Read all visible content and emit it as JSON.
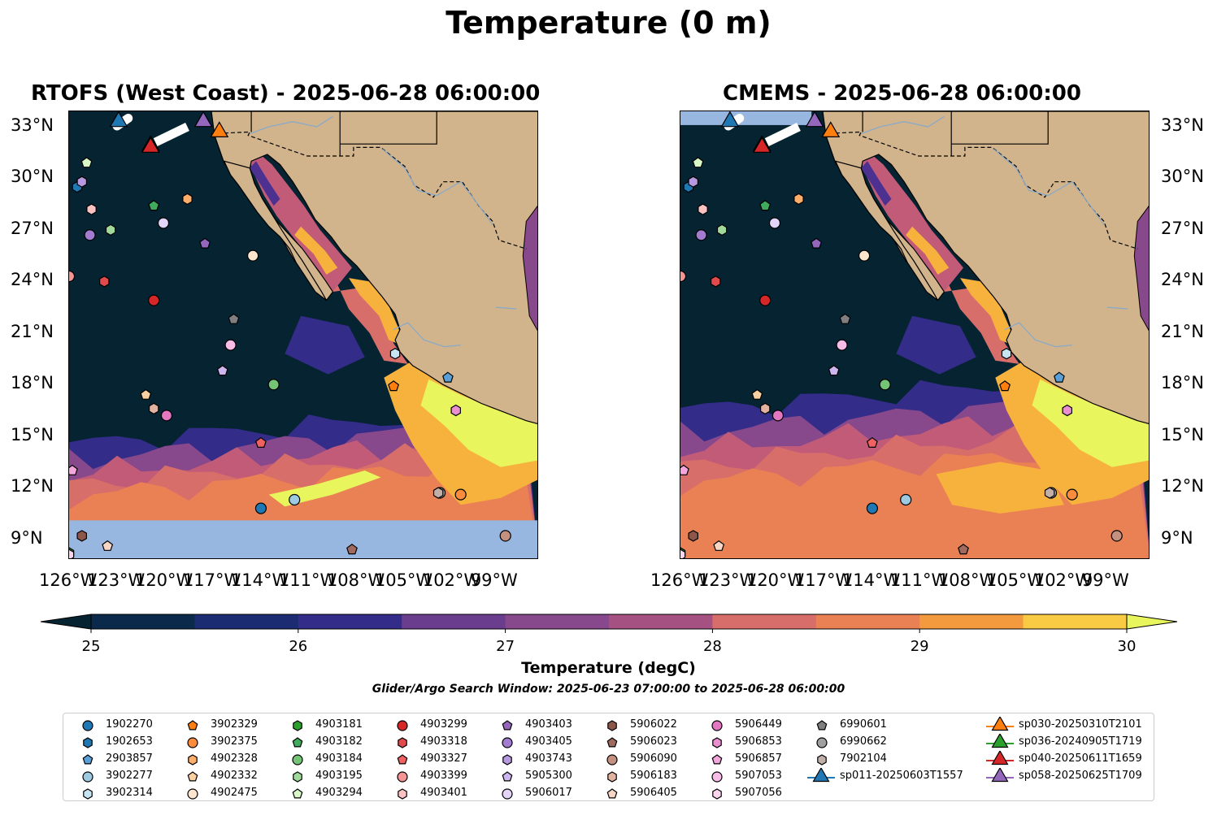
{
  "figure": {
    "title": "Temperature (0 m)",
    "left_panel_title": "RTOFS (West Coast) - 2025-06-28 06:00:00",
    "right_panel_title": "CMEMS - 2025-06-28 06:00:00",
    "lat_ticks": [
      "33°N",
      "30°N",
      "27°N",
      "24°N",
      "21°N",
      "18°N",
      "15°N",
      "12°N",
      "9°N"
    ],
    "lon_ticks": [
      "126°W",
      "123°W",
      "120°W",
      "117°W",
      "114°W",
      "111°W",
      "108°W",
      "105°W",
      "102°W",
      "99°W"
    ],
    "colorbar": {
      "label": "Temperature (degC)",
      "ticks": [
        "25",
        "26",
        "27",
        "28",
        "29",
        "30"
      ],
      "min": 24.9,
      "max": 30,
      "colors": [
        "#062332",
        "#0b2a4b",
        "#1c2c73",
        "#332c89",
        "#4d3190",
        "#6a3d8f",
        "#87498b",
        "#a55282",
        "#c15b78",
        "#d86e6a",
        "#ea8154",
        "#f39a3e",
        "#f7b23e",
        "#f9cb45",
        "#e8f55c"
      ]
    },
    "search_window": "Glider/Argo Search Window: 2025-06-23 07:00:00 to 2025-06-28 06:00:00",
    "colors": {
      "land": "#d2b48c",
      "nodata": "#97b6e0",
      "rivers": "#8aa9c8"
    }
  },
  "legend": {
    "items": [
      {
        "label": "1902270",
        "marker": "circle",
        "color": "#1f77b4"
      },
      {
        "label": "1902653",
        "marker": "hexagon",
        "color": "#1f77b4"
      },
      {
        "label": "2903857",
        "marker": "pentagon",
        "color": "#5aa0d6"
      },
      {
        "label": "3902277",
        "marker": "circle",
        "color": "#9ecae1"
      },
      {
        "label": "3902314",
        "marker": "hexagon",
        "color": "#c6e4f2"
      },
      {
        "label": "3902329",
        "marker": "pentagon",
        "color": "#ff7f0e"
      },
      {
        "label": "3902375",
        "marker": "circle",
        "color": "#fd8d3c"
      },
      {
        "label": "4902328",
        "marker": "hexagon",
        "color": "#fdae6b"
      },
      {
        "label": "4902332",
        "marker": "pentagon",
        "color": "#fdd0a2"
      },
      {
        "label": "4902475",
        "marker": "circle",
        "color": "#fee6ce"
      },
      {
        "label": "4903181",
        "marker": "hexagon",
        "color": "#2ca02c"
      },
      {
        "label": "4903182",
        "marker": "pentagon",
        "color": "#41ab5d"
      },
      {
        "label": "4903184",
        "marker": "circle",
        "color": "#74c476"
      },
      {
        "label": "4903195",
        "marker": "hexagon",
        "color": "#a1d99b"
      },
      {
        "label": "4903294",
        "marker": "pentagon",
        "color": "#d9f7c7"
      },
      {
        "label": "4903299",
        "marker": "circle",
        "color": "#d62728"
      },
      {
        "label": "4903318",
        "marker": "hexagon",
        "color": "#e04a4b"
      },
      {
        "label": "4903327",
        "marker": "pentagon",
        "color": "#f06262"
      },
      {
        "label": "4903399",
        "marker": "circle",
        "color": "#f49494"
      },
      {
        "label": "4903401",
        "marker": "hexagon",
        "color": "#fbc2c2"
      },
      {
        "label": "4903403",
        "marker": "pentagon",
        "color": "#9467bd"
      },
      {
        "label": "4903405",
        "marker": "circle",
        "color": "#a27cd0"
      },
      {
        "label": "4903743",
        "marker": "hexagon",
        "color": "#b799e0"
      },
      {
        "label": "5905300",
        "marker": "pentagon",
        "color": "#cdb5f0"
      },
      {
        "label": "5906017",
        "marker": "circle",
        "color": "#e3d5f7"
      },
      {
        "label": "5906022",
        "marker": "hexagon",
        "color": "#8c564b"
      },
      {
        "label": "5906023",
        "marker": "pentagon",
        "color": "#a06a5e"
      },
      {
        "label": "5906090",
        "marker": "circle",
        "color": "#c4907f"
      },
      {
        "label": "5906183",
        "marker": "hexagon",
        "color": "#e3b3a1"
      },
      {
        "label": "5906405",
        "marker": "pentagon",
        "color": "#f7d6c6"
      },
      {
        "label": "5906449",
        "marker": "circle",
        "color": "#e377c2"
      },
      {
        "label": "5906853",
        "marker": "hexagon",
        "color": "#ea8fcf"
      },
      {
        "label": "5906857",
        "marker": "pentagon",
        "color": "#f4a6dc"
      },
      {
        "label": "5907053",
        "marker": "circle",
        "color": "#f8bde6"
      },
      {
        "label": "5907056",
        "marker": "hexagon",
        "color": "#fbd5f0"
      },
      {
        "label": "6990601",
        "marker": "pentagon",
        "color": "#7f7f7f"
      },
      {
        "label": "6990662",
        "marker": "circle",
        "color": "#a0a0a0"
      },
      {
        "label": "7902104",
        "marker": "hexagon",
        "color": "#c2b0a8"
      },
      {
        "label": "sp011-20250603T1557",
        "marker": "triangle",
        "color": "#1f77b4"
      },
      {
        "label": "sp030-20250310T2101",
        "marker": "triangle",
        "color": "#ff7f0e"
      },
      {
        "label": "sp036-20240905T1719",
        "marker": "triangle",
        "color": "#2ca02c"
      },
      {
        "label": "sp040-20250611T1659",
        "marker": "triangle",
        "color": "#d62728"
      },
      {
        "label": "sp058-20250625T1709",
        "marker": "triangle",
        "color": "#9467bd"
      }
    ]
  },
  "argo_floats": [
    {
      "id": "1902270",
      "lon": -114.0,
      "lat": 10.8
    },
    {
      "id": "1902653",
      "lon": -125.5,
      "lat": 29.5
    },
    {
      "id": "2903857",
      "lon": -102.3,
      "lat": 18.4
    },
    {
      "id": "3902277",
      "lon": -111.9,
      "lat": 11.3
    },
    {
      "id": "3902314",
      "lon": -105.6,
      "lat": 19.8
    },
    {
      "id": "3902329",
      "lon": -105.7,
      "lat": 17.9
    },
    {
      "id": "3902375",
      "lon": -101.5,
      "lat": 11.6
    },
    {
      "id": "4902328",
      "lon": -118.6,
      "lat": 28.8
    },
    {
      "id": "4902332",
      "lon": -121.2,
      "lat": 17.4
    },
    {
      "id": "4902475",
      "lon": -114.5,
      "lat": 25.5
    },
    {
      "id": "4903181",
      "lon": -126.0,
      "lat": 8.2
    },
    {
      "id": "4903182",
      "lon": -120.7,
      "lat": 28.4
    },
    {
      "id": "4903184",
      "lon": -113.2,
      "lat": 18.0
    },
    {
      "id": "4903195",
      "lon": -123.4,
      "lat": 27.0
    },
    {
      "id": "4903294",
      "lon": -124.9,
      "lat": 30.9
    },
    {
      "id": "4903299",
      "lon": -120.7,
      "lat": 22.9
    },
    {
      "id": "4903318",
      "lon": -123.8,
      "lat": 24.0
    },
    {
      "id": "4903327",
      "lon": -114.0,
      "lat": 14.6
    },
    {
      "id": "4903399",
      "lon": -126.0,
      "lat": 24.3
    },
    {
      "id": "4903401",
      "lon": -124.6,
      "lat": 28.2
    },
    {
      "id": "4903403",
      "lon": -117.5,
      "lat": 26.2
    },
    {
      "id": "4903405",
      "lon": -124.7,
      "lat": 26.7
    },
    {
      "id": "4903743",
      "lon": -125.2,
      "lat": 29.8
    },
    {
      "id": "5905300",
      "lon": -116.4,
      "lat": 18.8
    },
    {
      "id": "5906017",
      "lon": -120.1,
      "lat": 27.4
    },
    {
      "id": "5906022",
      "lon": -125.2,
      "lat": 9.2
    },
    {
      "id": "5906023",
      "lon": -108.3,
      "lat": 8.4
    },
    {
      "id": "5906090",
      "lon": -98.7,
      "lat": 9.2
    },
    {
      "id": "5906183",
      "lon": -120.7,
      "lat": 16.6
    },
    {
      "id": "5906405",
      "lon": -123.6,
      "lat": 8.6
    },
    {
      "id": "5906449",
      "lon": -119.9,
      "lat": 16.2
    },
    {
      "id": "5906853",
      "lon": -101.8,
      "lat": 16.5
    },
    {
      "id": "5906857",
      "lon": -125.8,
      "lat": 13.0
    },
    {
      "id": "5907053",
      "lon": -115.9,
      "lat": 20.3
    },
    {
      "id": "5907056",
      "lon": -126.0,
      "lat": 8.1
    },
    {
      "id": "6990601",
      "lon": -115.7,
      "lat": 21.8
    },
    {
      "id": "6990662",
      "lon": -102.8,
      "lat": 11.7
    },
    {
      "id": "7902104",
      "lon": -102.9,
      "lat": 11.7
    }
  ],
  "gliders": [
    {
      "id": "sp011-20250603T1557",
      "lon": -122.9,
      "lat": 33.3
    },
    {
      "id": "sp030-20250310T2101",
      "lon": -116.6,
      "lat": 32.7
    },
    {
      "id": "sp036-20240905T1719",
      "lon": -120.9,
      "lat": 31.9
    },
    {
      "id": "sp040-20250611T1659",
      "lon": -120.9,
      "lat": 31.8
    },
    {
      "id": "sp058-20250625T1709",
      "lon": -117.6,
      "lat": 33.3
    }
  ]
}
